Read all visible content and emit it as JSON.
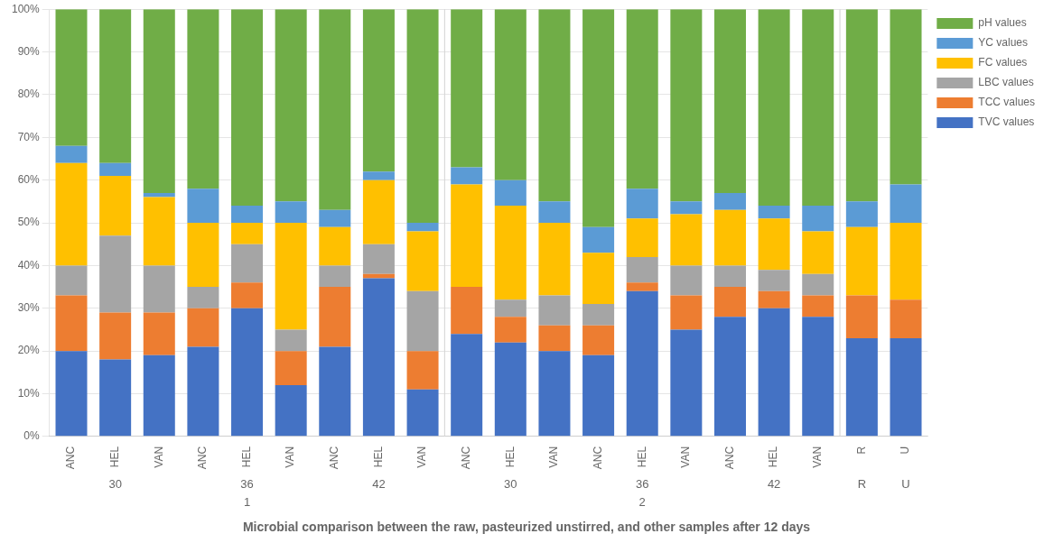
{
  "chart_data": {
    "type": "bar",
    "title": "Microbial comparison between the raw, pasteurized unstirred, and other samples after 12 days",
    "categories": [
      "ANC",
      "HEL",
      "VAN",
      "ANC",
      "HEL",
      "VAN",
      "ANC",
      "HEL",
      "VAN",
      "ANC",
      "HEL",
      "VAN",
      "ANC",
      "HEL",
      "VAN",
      "ANC",
      "HEL",
      "VAN",
      "R",
      "U"
    ],
    "series": [
      {
        "name": "TVC values",
        "color": "#4472C4",
        "values": [
          20,
          18,
          19,
          21,
          30,
          12,
          21,
          37,
          11,
          24,
          22,
          20,
          19,
          34,
          25,
          28,
          30,
          28,
          23,
          23
        ]
      },
      {
        "name": "TCC values",
        "color": "#ED7D31",
        "values": [
          13,
          11,
          10,
          9,
          6,
          8,
          14,
          1,
          9,
          11,
          6,
          6,
          7,
          2,
          8,
          7,
          4,
          5,
          10,
          9
        ]
      },
      {
        "name": "LBC values",
        "color": "#A5A5A5",
        "values": [
          7,
          18,
          11,
          5,
          9,
          5,
          5,
          7,
          14,
          0,
          4,
          7,
          5,
          6,
          7,
          5,
          5,
          5,
          0,
          0
        ]
      },
      {
        "name": "FC values",
        "color": "#FFC000",
        "values": [
          24,
          14,
          16,
          15,
          5,
          25,
          9,
          15,
          14,
          24,
          22,
          17,
          12,
          9,
          12,
          13,
          12,
          10,
          16,
          18
        ]
      },
      {
        "name": "YC values",
        "color": "#5B9BD5",
        "values": [
          4,
          3,
          1,
          8,
          4,
          5,
          4,
          2,
          2,
          4,
          6,
          5,
          6,
          7,
          3,
          4,
          3,
          6,
          6,
          9
        ]
      },
      {
        "name": "pH values",
        "color": "#70AD47",
        "values": [
          32,
          36,
          43,
          42,
          46,
          45,
          47,
          38,
          50,
          37,
          40,
          45,
          51,
          42,
          45,
          43,
          46,
          46,
          45,
          41
        ]
      }
    ],
    "stacked": true,
    "ylim": [
      0,
      100
    ],
    "yticks": [
      {
        "value": 0,
        "label": "0%"
      },
      {
        "value": 10,
        "label": "10%"
      },
      {
        "value": 20,
        "label": "20%"
      },
      {
        "value": 30,
        "label": "30%"
      },
      {
        "value": 40,
        "label": "40%"
      },
      {
        "value": 50,
        "label": "50%"
      },
      {
        "value": 60,
        "label": "60%"
      },
      {
        "value": 70,
        "label": "70%"
      },
      {
        "value": 80,
        "label": "80%"
      },
      {
        "value": 90,
        "label": "90%"
      },
      {
        "value": 100,
        "label": "100%"
      }
    ],
    "grid": true,
    "legend": "right",
    "annotations": [
      {
        "text": "30",
        "x": 1,
        "level": 1
      },
      {
        "text": "36",
        "x": 4,
        "level": 1
      },
      {
        "text": "42",
        "x": 7,
        "level": 1
      },
      {
        "text": "30",
        "x": 10,
        "level": 1
      },
      {
        "text": "36",
        "x": 13,
        "level": 1
      },
      {
        "text": "42",
        "x": 16,
        "level": 1
      },
      {
        "text": "1",
        "x": 4,
        "level": 2
      },
      {
        "text": "2",
        "x": 13,
        "level": 2
      },
      {
        "text": "R",
        "x": 18,
        "level": 1
      },
      {
        "text": "U",
        "x": 19,
        "level": 1
      }
    ],
    "separators": [
      8.5,
      17.5
    ]
  }
}
